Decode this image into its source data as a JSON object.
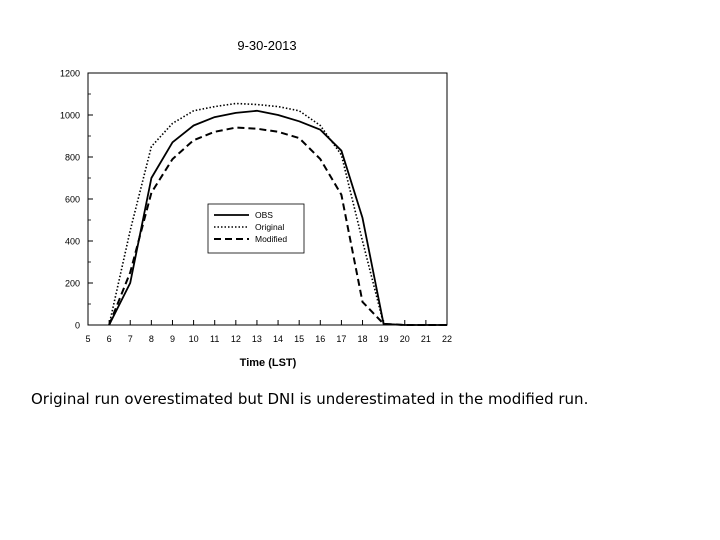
{
  "chart_data": {
    "type": "line",
    "title": "9-30-2013",
    "xlabel": "Time (LST)",
    "ylabel": "",
    "xlim": [
      5,
      22
    ],
    "ylim": [
      0,
      1200
    ],
    "xticks": [
      "5",
      "6",
      "7",
      "8",
      "9",
      "10",
      "11",
      "12",
      "13",
      "14",
      "15",
      "16",
      "17",
      "18",
      "19",
      "20",
      "21",
      "22"
    ],
    "yticks": [
      "0",
      "200",
      "400",
      "600",
      "800",
      "1000",
      "1200"
    ],
    "grid": false,
    "legend_position": "center",
    "series": [
      {
        "name": "OBS",
        "style": "solid",
        "color": "#000000",
        "x": [
          6,
          7,
          8,
          9,
          10,
          11,
          12,
          13,
          14,
          15,
          16,
          17,
          18,
          19,
          20,
          21,
          22
        ],
        "y": [
          0,
          200,
          700,
          870,
          950,
          990,
          1010,
          1020,
          1000,
          970,
          930,
          830,
          510,
          5,
          0,
          0,
          0
        ]
      },
      {
        "name": "Original",
        "style": "dotted",
        "color": "#000000",
        "x": [
          6,
          7,
          8,
          9,
          10,
          11,
          12,
          13,
          14,
          15,
          16,
          17,
          18,
          19,
          20,
          21,
          22
        ],
        "y": [
          0,
          450,
          850,
          960,
          1020,
          1040,
          1055,
          1050,
          1040,
          1020,
          950,
          810,
          400,
          5,
          0,
          0,
          0
        ]
      },
      {
        "name": "Modified",
        "style": "dashed",
        "color": "#000000",
        "x": [
          6,
          7,
          8,
          9,
          10,
          11,
          12,
          13,
          14,
          15,
          16,
          17,
          18,
          19,
          20,
          21,
          22
        ],
        "y": [
          0,
          250,
          630,
          790,
          880,
          920,
          940,
          935,
          920,
          890,
          790,
          620,
          110,
          5,
          0,
          0,
          0
        ]
      }
    ]
  },
  "caption": "Original run overestimated but DNI is underestimated in the modified run."
}
